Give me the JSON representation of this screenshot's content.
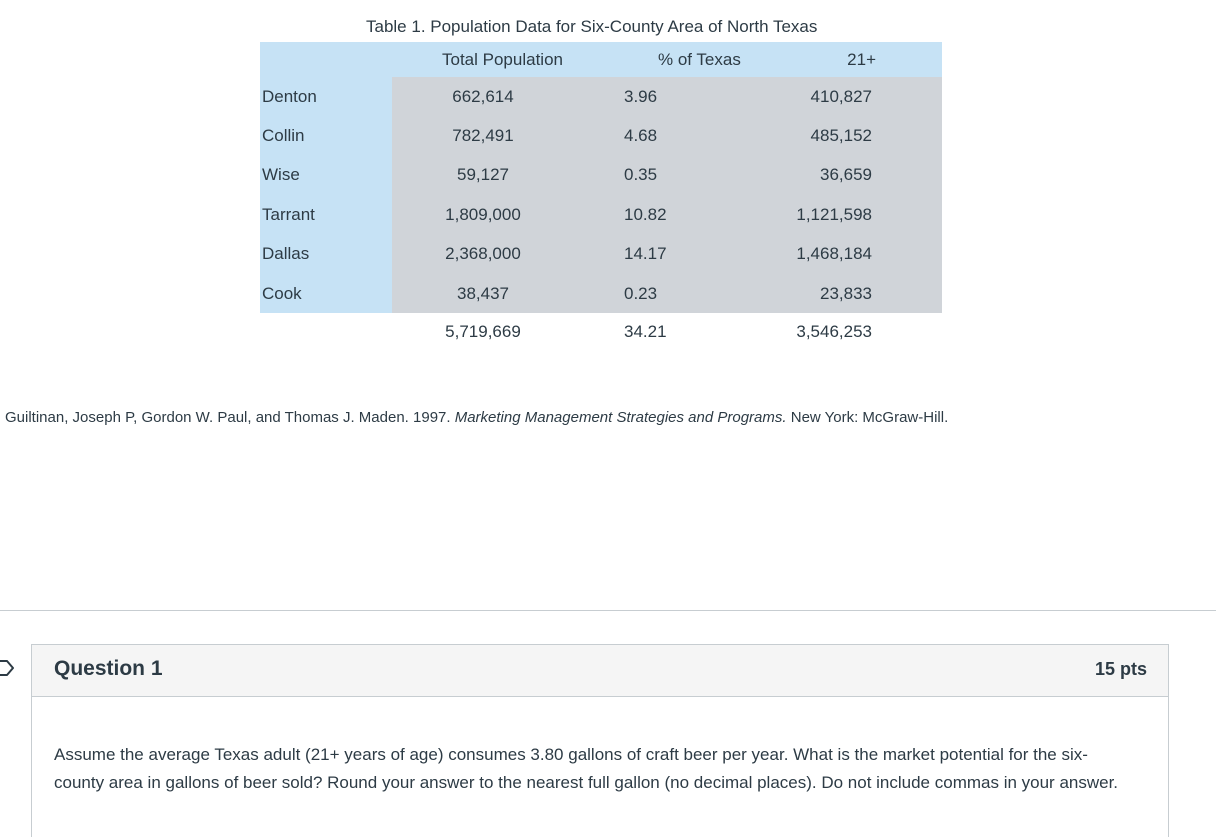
{
  "table": {
    "caption": "Table 1. Population Data for Six-County Area of North Texas",
    "headers": {
      "county": "",
      "total": "Total Population",
      "pct": "% of Texas",
      "adult": "21+"
    },
    "rows": [
      {
        "county": "Denton",
        "total": "662,614",
        "pct": "3.96",
        "adult": "410,827"
      },
      {
        "county": "Collin",
        "total": "782,491",
        "pct": "4.68",
        "adult": "485,152"
      },
      {
        "county": "Wise",
        "total": "59,127",
        "pct": "0.35",
        "adult": "36,659"
      },
      {
        "county": "Tarrant",
        "total": "1,809,000",
        "pct": "10.82",
        "adult": "1,121,598"
      },
      {
        "county": "Dallas",
        "total": "2,368,000",
        "pct": "14.17",
        "adult": "1,468,184"
      },
      {
        "county": "Cook",
        "total": "38,437",
        "pct": "0.23",
        "adult": "23,833"
      }
    ],
    "totals": {
      "total": "5,719,669",
      "pct": "34.21",
      "adult": "3,546,253"
    }
  },
  "citation": {
    "authors": "Guiltinan, Joseph P, Gordon W. Paul, and Thomas J. Maden. 1997. ",
    "title": "Marketing Management Strategies and Programs.",
    "publisher": " New York: McGraw-Hill."
  },
  "question": {
    "title": "Question 1",
    "points": "15 pts",
    "text": "Assume the average Texas adult (21+ years of age) consumes 3.80 gallons of craft beer per year. What is the market potential for the six-county area in gallons of beer sold? Round your answer to the nearest full gallon (no decimal places). Do not include commas in your answer."
  },
  "colors": {
    "header_blue": "#c6e2f5",
    "cell_gray": "#d0d4d9",
    "text": "#2d3b45",
    "border": "#c7cdd1"
  }
}
